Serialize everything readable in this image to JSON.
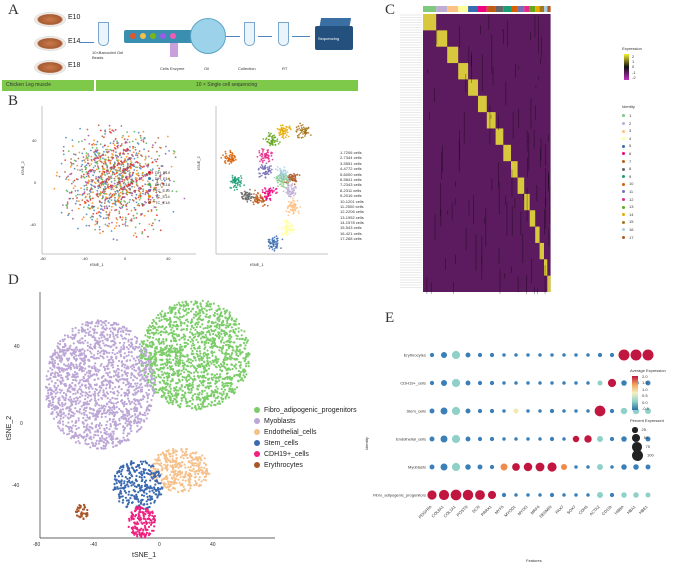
{
  "panels": {
    "a": "A",
    "b": "B",
    "c": "C",
    "d": "D",
    "e": "E"
  },
  "panel_a": {
    "stages": [
      "E10",
      "E14",
      "E18"
    ],
    "steps": [
      "10×Barcoded Gel Beads",
      "Cells Enzyme",
      "Oil",
      "Collection",
      "RT",
      "Sequencing"
    ],
    "bar_left": "Chicken Leg muscle",
    "bar_right": "10 × Single cell sequencing"
  },
  "panel_b": {
    "left_legend": [
      "DH_E10",
      "DH_E14",
      "DH_E18",
      "TC_E10",
      "TC_E14",
      "TC_E18"
    ],
    "right_legend": [
      "1-7206 cells",
      "2-7344 cells",
      "3-5551 cells",
      "4-4772 cells",
      "5-6000 cells",
      "6-5841 cells",
      "7-2343 cells",
      "8-2311 cells",
      "9-2016 cells",
      "10-1201 cells",
      "11-2500 cells",
      "12-2206 cells",
      "13-1952 cells",
      "14-1578 cells",
      "15-543 cells",
      "16-421 cells",
      "17-268 cells"
    ],
    "xlabel": "tSNE_1",
    "ylabel": "tSNE_2",
    "xticks": [
      "-80",
      "-40",
      "0",
      "40"
    ],
    "yticks": [
      "40",
      "0",
      "-40"
    ]
  },
  "panel_c": {
    "legend_title": "Expression",
    "legend_ticks": [
      "2",
      "1",
      "0",
      "-1",
      "-2"
    ],
    "identity_title": "Identity",
    "identity_items": [
      "1",
      "2",
      "3",
      "4",
      "5",
      "6",
      "7",
      "8",
      "9",
      "10",
      "11",
      "12",
      "13",
      "14",
      "15",
      "16",
      "17"
    ],
    "identity_colors": [
      "#7fc97f",
      "#beaed4",
      "#fdc086",
      "#ffff99",
      "#386cb0",
      "#f0027f",
      "#bf5b17",
      "#666666",
      "#1b9e77",
      "#d95f02",
      "#7570b3",
      "#e7298a",
      "#66a61e",
      "#e6ab02",
      "#a6761d",
      "#a6cee3",
      "#b15928"
    ]
  },
  "panel_d": {
    "xlabel": "tSNE_1",
    "ylabel": "tSNE_2",
    "xticks": [
      "-80",
      "-40",
      "0",
      "40"
    ],
    "yticks": [
      "40",
      "0",
      "-40"
    ],
    "legend": [
      {
        "label": "Fibro_adipogenic_progenitors",
        "color": "#7ccd6a"
      },
      {
        "label": "Myoblasts",
        "color": "#bca6d6"
      },
      {
        "label": "Endothelial_cells",
        "color": "#f5c08a"
      },
      {
        "label": "Stem_cells",
        "color": "#3b69b0"
      },
      {
        "label": "CDH19+_cells",
        "color": "#f0207f"
      },
      {
        "label": "Erythrocytes",
        "color": "#a9552a"
      }
    ]
  },
  "chart_data": {
    "type": "scatter",
    "title": "",
    "xlabel": "Features",
    "ylabel": "Identity",
    "categories_y": [
      "Erythrocytes",
      "CDH19+_cells",
      "Stem_cells",
      "Endothelial_cells",
      "Myoblasts",
      "Fibro_adipogenic_progenitors"
    ],
    "categories_x": [
      "PDGFRA",
      "COL6A1",
      "COL1A1",
      "POSTN",
      "DCN",
      "PRRX1",
      "MYF5",
      "MYOD1",
      "MYOG",
      "MRF4",
      "DESMIN",
      "PAX7",
      "SOX7",
      "CDH5",
      "ACTA2",
      "CD11b",
      "HBBA",
      "HBA1",
      "HBE1"
    ],
    "color_scale": {
      "title": "Average Expression",
      "ticks": [
        "2.0",
        "1.5",
        "1.0",
        "0.5",
        "0.0",
        "-0.5"
      ]
    },
    "size_scale": {
      "title": "Percent Expressed",
      "ticks": [
        "25",
        "50",
        "75",
        "100"
      ]
    },
    "points": [
      {
        "row": 5,
        "col": 0,
        "size": 70,
        "expr": 1.8
      },
      {
        "row": 5,
        "col": 1,
        "size": 85,
        "expr": 2.0
      },
      {
        "row": 5,
        "col": 2,
        "size": 95,
        "expr": 2.0
      },
      {
        "row": 5,
        "col": 3,
        "size": 90,
        "expr": 1.9
      },
      {
        "row": 5,
        "col": 4,
        "size": 80,
        "expr": 1.8
      },
      {
        "row": 5,
        "col": 5,
        "size": 55,
        "expr": 1.6
      },
      {
        "row": 5,
        "col": 6,
        "size": 15,
        "expr": 0.0
      },
      {
        "row": 5,
        "col": 7,
        "size": 10,
        "expr": 0.0
      },
      {
        "row": 5,
        "col": 8,
        "size": 10,
        "expr": 0.0
      },
      {
        "row": 5,
        "col": 9,
        "size": 10,
        "expr": 0.0
      },
      {
        "row": 5,
        "col": 10,
        "size": 15,
        "expr": 0.0
      },
      {
        "row": 5,
        "col": 11,
        "size": 10,
        "expr": 0.0
      },
      {
        "row": 5,
        "col": 12,
        "size": 10,
        "expr": 0.0
      },
      {
        "row": 5,
        "col": 13,
        "size": 10,
        "expr": 0.0
      },
      {
        "row": 5,
        "col": 14,
        "size": 30,
        "expr": 0.3
      },
      {
        "row": 5,
        "col": 15,
        "size": 15,
        "expr": 0.0
      },
      {
        "row": 5,
        "col": 16,
        "size": 25,
        "expr": 0.1
      },
      {
        "row": 5,
        "col": 17,
        "size": 25,
        "expr": 0.1
      },
      {
        "row": 5,
        "col": 18,
        "size": 20,
        "expr": 0.1
      },
      {
        "row": 4,
        "col": 0,
        "size": 20,
        "expr": -0.2
      },
      {
        "row": 4,
        "col": 1,
        "size": 40,
        "expr": 0.0
      },
      {
        "row": 4,
        "col": 2,
        "size": 55,
        "expr": 0.1
      },
      {
        "row": 4,
        "col": 3,
        "size": 25,
        "expr": 0.0
      },
      {
        "row": 4,
        "col": 4,
        "size": 20,
        "expr": -0.1
      },
      {
        "row": 4,
        "col": 5,
        "size": 15,
        "expr": 0.0
      },
      {
        "row": 4,
        "col": 6,
        "size": 40,
        "expr": 1.5
      },
      {
        "row": 4,
        "col": 7,
        "size": 50,
        "expr": 1.7
      },
      {
        "row": 4,
        "col": 8,
        "size": 60,
        "expr": 1.9
      },
      {
        "row": 4,
        "col": 9,
        "size": 65,
        "expr": 1.9
      },
      {
        "row": 4,
        "col": 10,
        "size": 70,
        "expr": 2.0
      },
      {
        "row": 4,
        "col": 11,
        "size": 30,
        "expr": 1.5
      },
      {
        "row": 4,
        "col": 12,
        "size": 10,
        "expr": 0.0
      },
      {
        "row": 4,
        "col": 13,
        "size": 10,
        "expr": 0.0
      },
      {
        "row": 4,
        "col": 14,
        "size": 30,
        "expr": 0.2
      },
      {
        "row": 4,
        "col": 15,
        "size": 10,
        "expr": 0.0
      },
      {
        "row": 4,
        "col": 16,
        "size": 25,
        "expr": 0.0
      },
      {
        "row": 4,
        "col": 17,
        "size": 25,
        "expr": 0.0
      },
      {
        "row": 4,
        "col": 18,
        "size": 20,
        "expr": 0.0
      },
      {
        "row": 3,
        "col": 0,
        "size": 20,
        "expr": -0.2
      },
      {
        "row": 3,
        "col": 1,
        "size": 40,
        "expr": 0.0
      },
      {
        "row": 3,
        "col": 2,
        "size": 55,
        "expr": 0.1
      },
      {
        "row": 3,
        "col": 3,
        "size": 20,
        "expr": 0.0
      },
      {
        "row": 3,
        "col": 4,
        "size": 15,
        "expr": -0.1
      },
      {
        "row": 3,
        "col": 5,
        "size": 15,
        "expr": 0.0
      },
      {
        "row": 3,
        "col": 6,
        "size": 10,
        "expr": 0.0
      },
      {
        "row": 3,
        "col": 7,
        "size": 10,
        "expr": 0.0
      },
      {
        "row": 3,
        "col": 8,
        "size": 10,
        "expr": 0.0
      },
      {
        "row": 3,
        "col": 9,
        "size": 10,
        "expr": 0.0
      },
      {
        "row": 3,
        "col": 10,
        "size": 15,
        "expr": 0.0
      },
      {
        "row": 3,
        "col": 11,
        "size": 10,
        "expr": 0.0
      },
      {
        "row": 3,
        "col": 12,
        "size": 35,
        "expr": 1.7
      },
      {
        "row": 3,
        "col": 13,
        "size": 45,
        "expr": 1.9
      },
      {
        "row": 3,
        "col": 14,
        "size": 30,
        "expr": 0.2
      },
      {
        "row": 3,
        "col": 15,
        "size": 15,
        "expr": 0.0
      },
      {
        "row": 3,
        "col": 16,
        "size": 25,
        "expr": 0.0
      },
      {
        "row": 3,
        "col": 17,
        "size": 25,
        "expr": 0.0
      },
      {
        "row": 3,
        "col": 18,
        "size": 20,
        "expr": 0.0
      },
      {
        "row": 2,
        "col": 0,
        "size": 20,
        "expr": -0.2
      },
      {
        "row": 2,
        "col": 1,
        "size": 40,
        "expr": 0.0
      },
      {
        "row": 2,
        "col": 2,
        "size": 55,
        "expr": 0.1
      },
      {
        "row": 2,
        "col": 3,
        "size": 20,
        "expr": 0.0
      },
      {
        "row": 2,
        "col": 4,
        "size": 15,
        "expr": -0.1
      },
      {
        "row": 2,
        "col": 5,
        "size": 15,
        "expr": 0.0
      },
      {
        "row": 2,
        "col": 6,
        "size": 10,
        "expr": 0.0
      },
      {
        "row": 2,
        "col": 7,
        "size": 20,
        "expr": 1.0
      },
      {
        "row": 2,
        "col": 8,
        "size": 10,
        "expr": 0.0
      },
      {
        "row": 2,
        "col": 9,
        "size": 10,
        "expr": 0.0
      },
      {
        "row": 2,
        "col": 10,
        "size": 15,
        "expr": 0.0
      },
      {
        "row": 2,
        "col": 11,
        "size": 10,
        "expr": 0.0
      },
      {
        "row": 2,
        "col": 12,
        "size": 10,
        "expr": 0.0
      },
      {
        "row": 2,
        "col": 13,
        "size": 10,
        "expr": 0.0
      },
      {
        "row": 2,
        "col": 14,
        "size": 95,
        "expr": 2.0
      },
      {
        "row": 2,
        "col": 15,
        "size": 15,
        "expr": 0.0
      },
      {
        "row": 2,
        "col": 16,
        "size": 35,
        "expr": 0.2
      },
      {
        "row": 2,
        "col": 17,
        "size": 35,
        "expr": 0.2
      },
      {
        "row": 2,
        "col": 18,
        "size": 30,
        "expr": 0.1
      },
      {
        "row": 1,
        "col": 0,
        "size": 15,
        "expr": -0.2
      },
      {
        "row": 1,
        "col": 1,
        "size": 30,
        "expr": 0.0
      },
      {
        "row": 1,
        "col": 2,
        "size": 55,
        "expr": 0.1
      },
      {
        "row": 1,
        "col": 3,
        "size": 20,
        "expr": 0.0
      },
      {
        "row": 1,
        "col": 4,
        "size": 15,
        "expr": -0.1
      },
      {
        "row": 1,
        "col": 5,
        "size": 15,
        "expr": 0.0
      },
      {
        "row": 1,
        "col": 6,
        "size": 10,
        "expr": 0.0
      },
      {
        "row": 1,
        "col": 7,
        "size": 10,
        "expr": 0.0
      },
      {
        "row": 1,
        "col": 8,
        "size": 10,
        "expr": 0.0
      },
      {
        "row": 1,
        "col": 9,
        "size": 10,
        "expr": 0.0
      },
      {
        "row": 1,
        "col": 10,
        "size": 10,
        "expr": 0.0
      },
      {
        "row": 1,
        "col": 11,
        "size": 10,
        "expr": 0.0
      },
      {
        "row": 1,
        "col": 12,
        "size": 10,
        "expr": 0.0
      },
      {
        "row": 1,
        "col": 13,
        "size": 10,
        "expr": 0.0
      },
      {
        "row": 1,
        "col": 14,
        "size": 20,
        "expr": 0.1
      },
      {
        "row": 1,
        "col": 15,
        "size": 55,
        "expr": 2.0
      },
      {
        "row": 1,
        "col": 16,
        "size": 25,
        "expr": 0.0
      },
      {
        "row": 1,
        "col": 17,
        "size": 25,
        "expr": 0.0
      },
      {
        "row": 1,
        "col": 18,
        "size": 20,
        "expr": 0.0
      },
      {
        "row": 0,
        "col": 0,
        "size": 15,
        "expr": -0.2
      },
      {
        "row": 0,
        "col": 1,
        "size": 30,
        "expr": 0.0
      },
      {
        "row": 0,
        "col": 2,
        "size": 55,
        "expr": 0.1
      },
      {
        "row": 0,
        "col": 3,
        "size": 20,
        "expr": 0.0
      },
      {
        "row": 0,
        "col": 4,
        "size": 15,
        "expr": -0.1
      },
      {
        "row": 0,
        "col": 5,
        "size": 15,
        "expr": 0.0
      },
      {
        "row": 0,
        "col": 6,
        "size": 10,
        "expr": 0.0
      },
      {
        "row": 0,
        "col": 7,
        "size": 10,
        "expr": 0.0
      },
      {
        "row": 0,
        "col": 8,
        "size": 10,
        "expr": 0.0
      },
      {
        "row": 0,
        "col": 9,
        "size": 10,
        "expr": 0.0
      },
      {
        "row": 0,
        "col": 10,
        "size": 10,
        "expr": 0.0
      },
      {
        "row": 0,
        "col": 11,
        "size": 10,
        "expr": 0.0
      },
      {
        "row": 0,
        "col": 12,
        "size": 10,
        "expr": 0.0
      },
      {
        "row": 0,
        "col": 13,
        "size": 10,
        "expr": 0.0
      },
      {
        "row": 0,
        "col": 14,
        "size": 15,
        "expr": 0.0
      },
      {
        "row": 0,
        "col": 15,
        "size": 15,
        "expr": 0.0
      },
      {
        "row": 0,
        "col": 16,
        "size": 100,
        "expr": 2.0
      },
      {
        "row": 0,
        "col": 17,
        "size": 100,
        "expr": 2.0
      },
      {
        "row": 0,
        "col": 18,
        "size": 100,
        "expr": 2.0
      }
    ]
  }
}
